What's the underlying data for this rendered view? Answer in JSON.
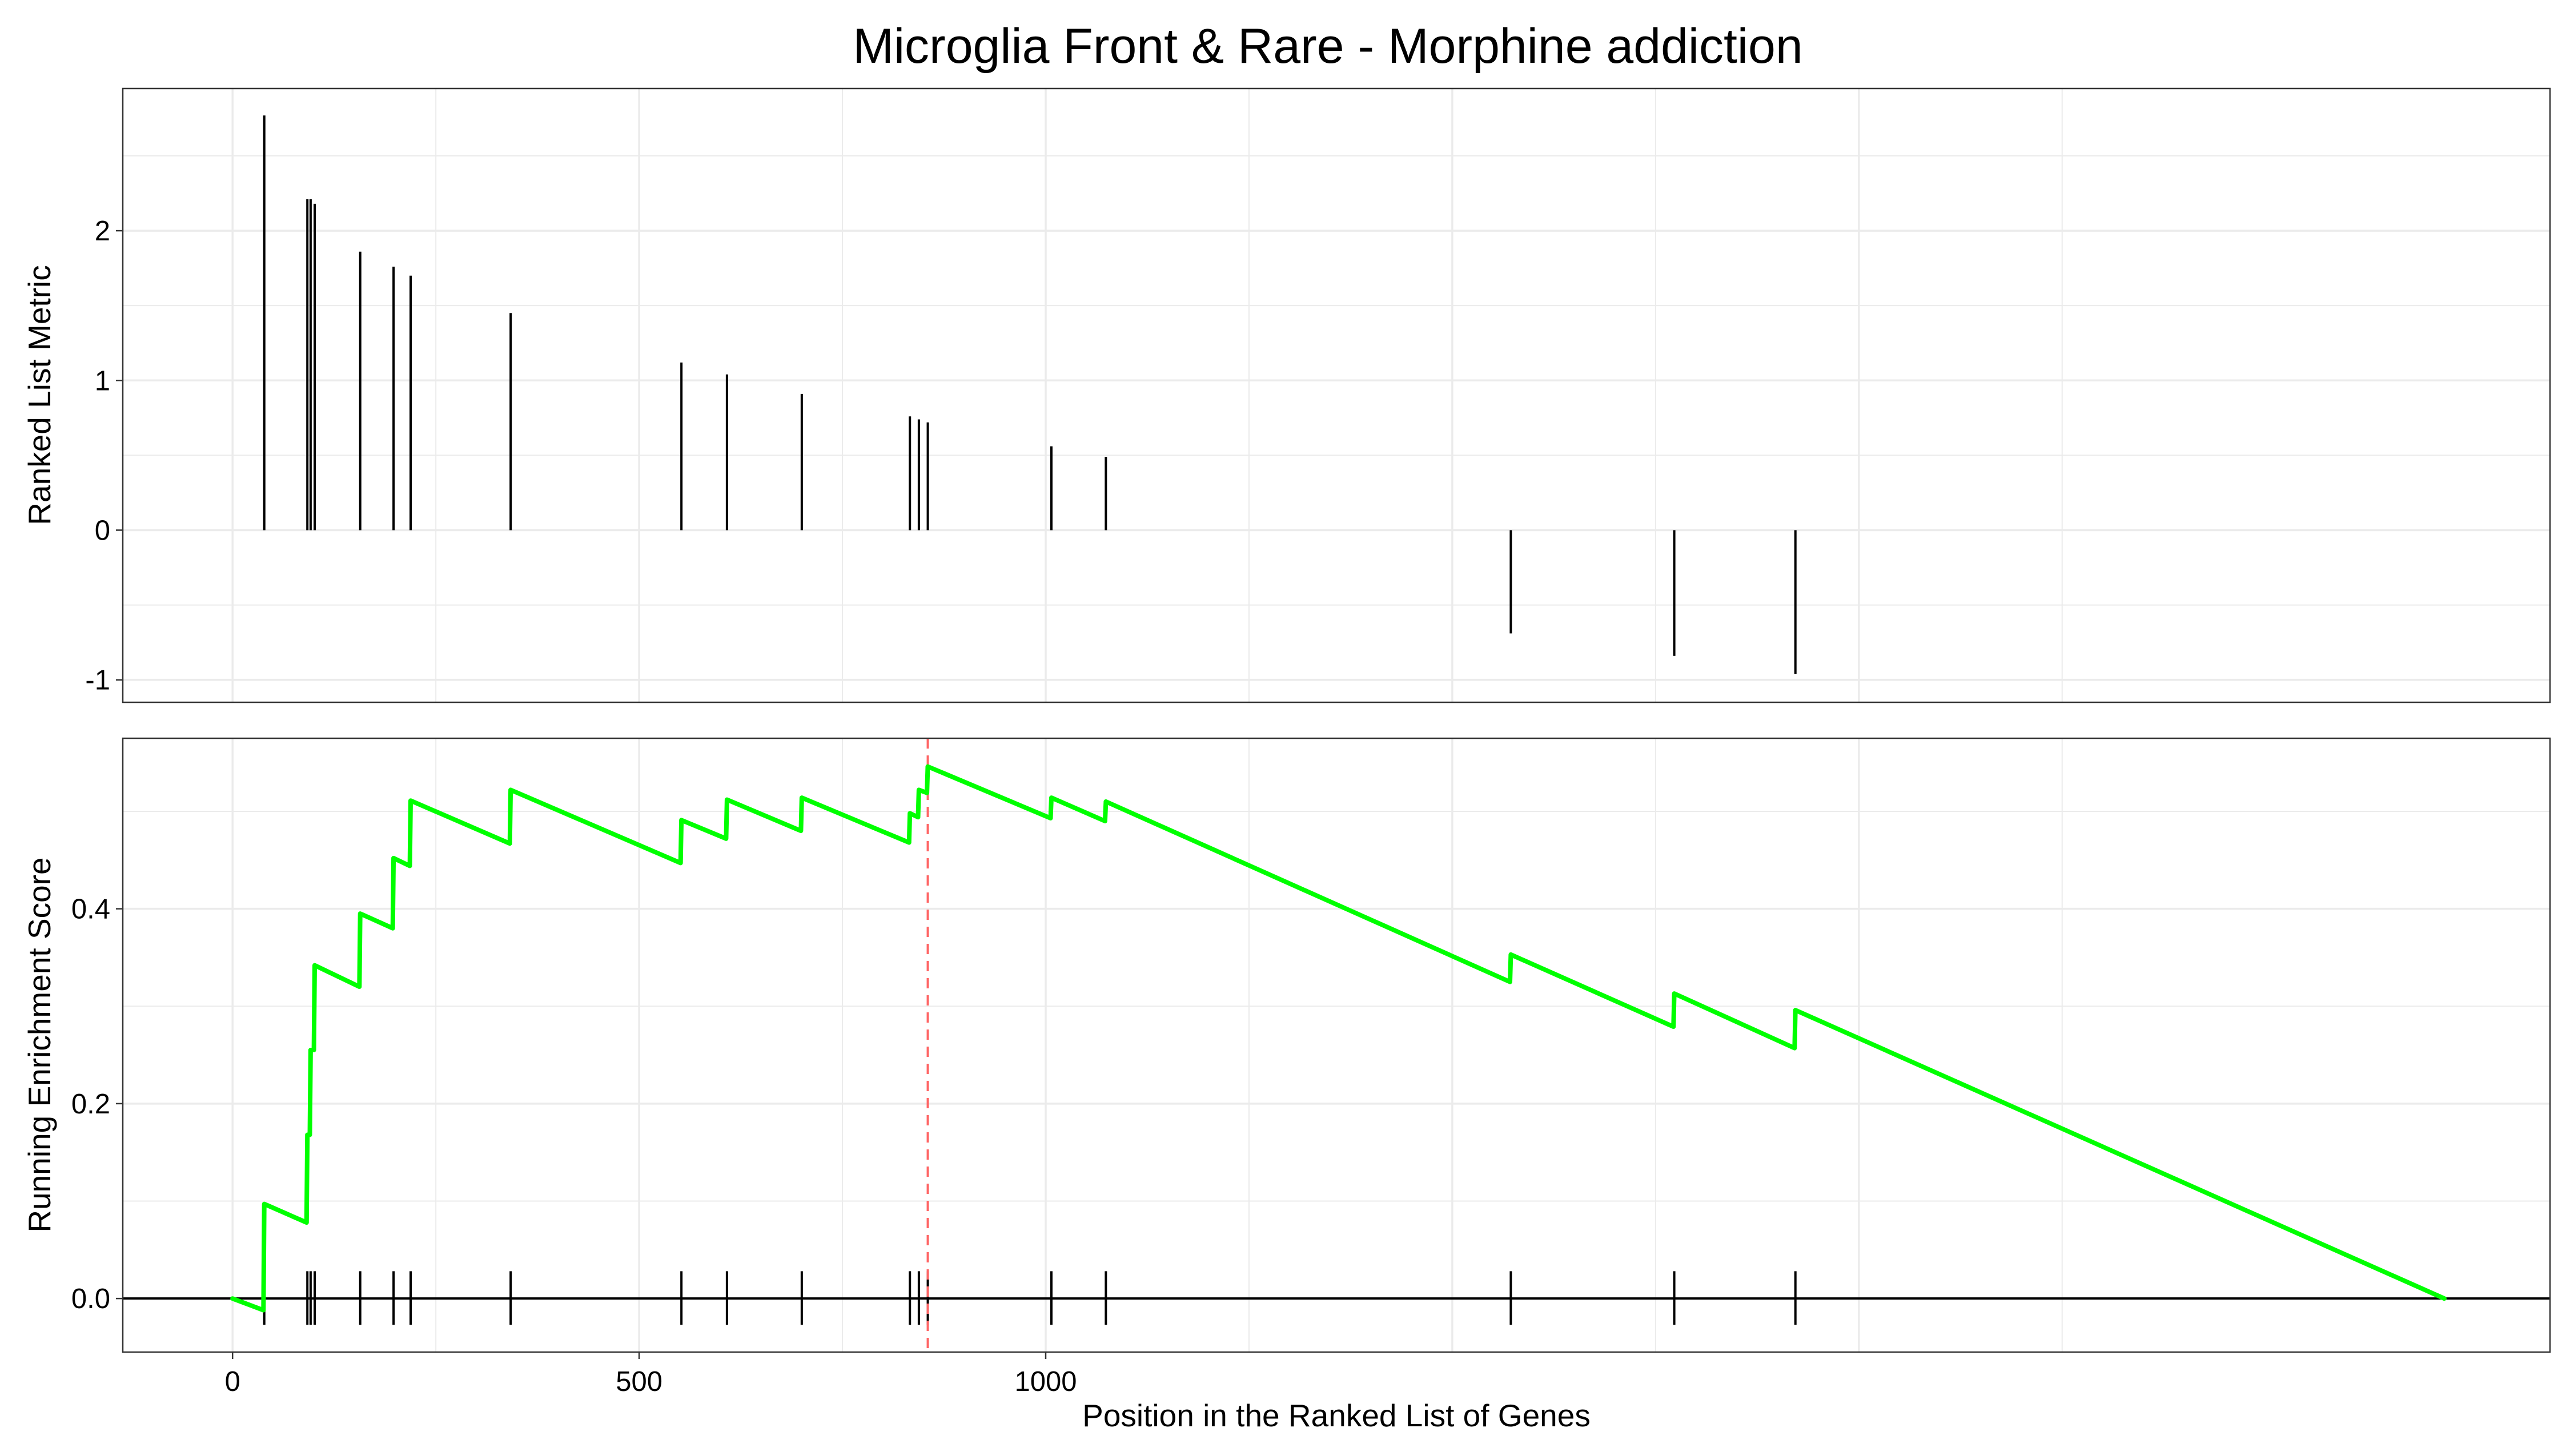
{
  "chart_data": {
    "type": "line",
    "title": "Microglia Front & Rare - Morphine addiction",
    "xlabel": "Position in the Ranked List of Genes",
    "xlim": [
      -135,
      2850
    ],
    "x_ticks": [
      0,
      500,
      1000
    ],
    "x_tick_labels": [
      "0",
      "500",
      "1000"
    ],
    "grid": true,
    "legend": "none",
    "colors": {
      "es_line": "#00ff00",
      "peak_line": "#ff6666",
      "bars": "#000000",
      "grid": "#ebebeb"
    },
    "panels": [
      {
        "name": "ranked-metric",
        "type": "bar",
        "ylabel": "Ranked List Metric",
        "ylim": [
          -1.15,
          2.95
        ],
        "y_ticks": [
          -1,
          0,
          1,
          2
        ],
        "y_tick_labels": [
          "-1",
          "0",
          "1",
          "2"
        ],
        "x": [
          39,
          92,
          96,
          101,
          157,
          198,
          219,
          342,
          552,
          608,
          700,
          833,
          844,
          855,
          1007,
          1074,
          1572,
          1773,
          1922
        ],
        "values": [
          2.77,
          2.21,
          2.21,
          2.18,
          1.86,
          1.76,
          1.7,
          1.45,
          1.12,
          1.04,
          0.91,
          0.76,
          0.74,
          0.72,
          0.56,
          0.49,
          -0.69,
          -0.84,
          -0.96
        ]
      },
      {
        "name": "running-enrichment-score",
        "type": "line",
        "ylabel": "Running Enrichment Score",
        "ylim": [
          -0.055,
          0.575
        ],
        "y_ticks": [
          0.0,
          0.2,
          0.4
        ],
        "y_tick_labels": [
          "0.0",
          "0.2",
          "0.4"
        ],
        "hits": [
          39,
          92,
          96,
          101,
          157,
          198,
          219,
          342,
          552,
          608,
          700,
          833,
          844,
          855,
          1007,
          1074,
          1572,
          1773,
          1922
        ],
        "line_x": [
          0,
          38,
          39,
          91,
          92,
          95,
          96,
          100,
          101,
          156,
          157,
          197,
          198,
          218,
          219,
          341,
          342,
          551,
          552,
          607,
          608,
          699,
          700,
          832,
          833,
          843,
          844,
          854,
          855,
          1006,
          1007,
          1073,
          1074,
          1571,
          1572,
          1772,
          1773,
          1921,
          1922,
          2720
        ],
        "line_y": [
          0.0,
          -0.012,
          0.097,
          0.078,
          0.168,
          0.168,
          0.255,
          0.255,
          0.342,
          0.32,
          0.395,
          0.38,
          0.452,
          0.444,
          0.511,
          0.467,
          0.522,
          0.447,
          0.491,
          0.472,
          0.512,
          0.48,
          0.514,
          0.468,
          0.498,
          0.494,
          0.522,
          0.519,
          0.546,
          0.493,
          0.514,
          0.49,
          0.51,
          0.325,
          0.353,
          0.279,
          0.313,
          0.257,
          0.296,
          0.0
        ],
        "peak_x": 855
      }
    ]
  }
}
